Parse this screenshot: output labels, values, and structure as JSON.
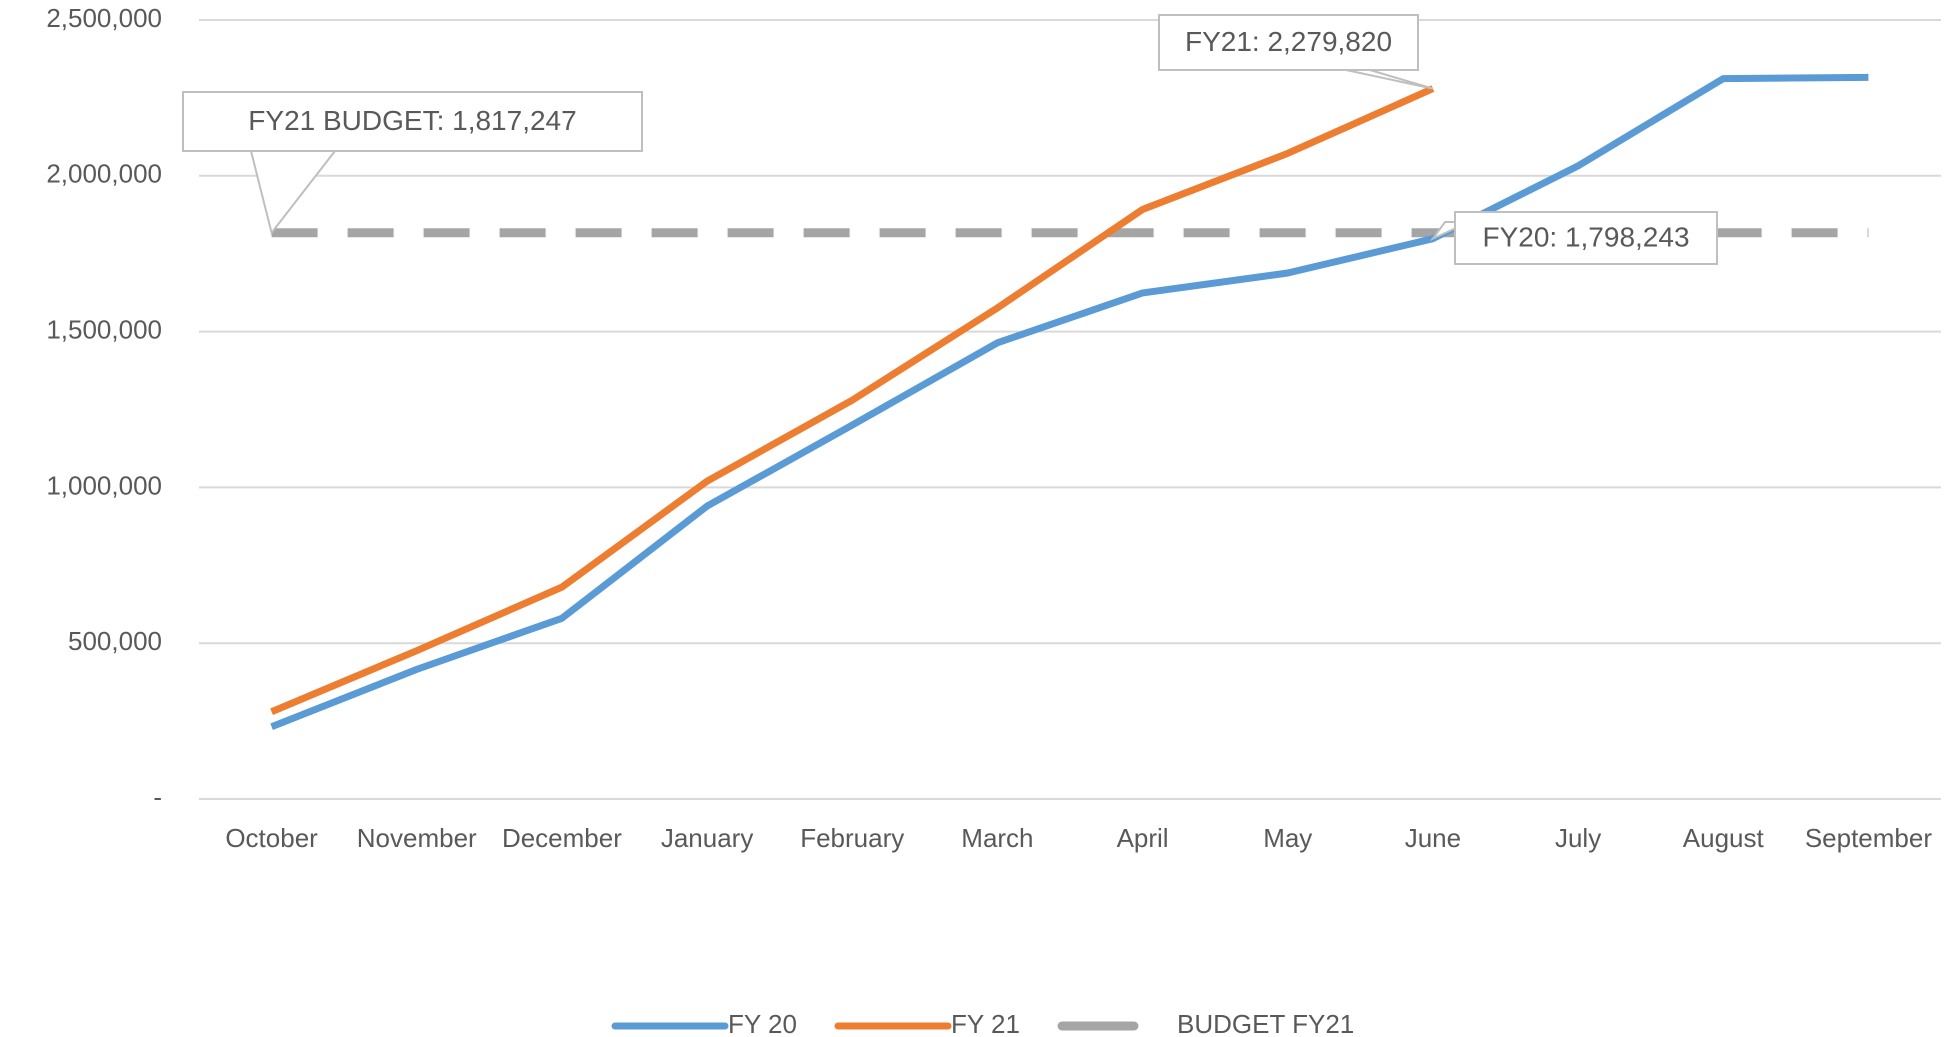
{
  "chart_data": {
    "type": "line",
    "categories": [
      "October",
      "November",
      "December",
      "January",
      "February",
      "March",
      "April",
      "May",
      "June",
      "July",
      "August",
      "September"
    ],
    "series": [
      {
        "name": "FY 20",
        "color": "#5b9bd5",
        "values": [
          232000,
          416000,
          580000,
          940000,
          1200000,
          1464000,
          1624000,
          1688000,
          1798243,
          2032000,
          2312000,
          2316000
        ],
        "value_labels": [
          null,
          null,
          null,
          null,
          null,
          null,
          null,
          null,
          "FY20:  1,798,243",
          null,
          null,
          null
        ]
      },
      {
        "name": "FY 21",
        "color": "#ed7d31",
        "values": [
          280000,
          476000,
          680000,
          1020000,
          1280000,
          1576000,
          1892000,
          2072000,
          2279820,
          null,
          null,
          null
        ],
        "value_labels": [
          null,
          null,
          null,
          null,
          null,
          null,
          null,
          null,
          "FY21:  2,279,820",
          null,
          null,
          null
        ]
      },
      {
        "name": "BUDGET FY21",
        "color": "#a5a5a5",
        "dashed": true,
        "values": [
          1817247,
          1817247,
          1817247,
          1817247,
          1817247,
          1817247,
          1817247,
          1817247,
          1817247,
          1817247,
          1817247,
          1817247
        ],
        "value_labels": [
          "FY21 BUDGET: 1,817,247",
          null,
          null,
          null,
          null,
          null,
          null,
          null,
          null,
          null,
          null,
          null
        ]
      }
    ],
    "ylim": [
      0,
      2500000
    ],
    "yticks": [
      {
        "value": 0,
        "label": "-"
      },
      {
        "value": 500000,
        "label": "500,000"
      },
      {
        "value": 1000000,
        "label": "1,000,000"
      },
      {
        "value": 1500000,
        "label": "1,500,000"
      },
      {
        "value": 2000000,
        "label": "2,000,000"
      },
      {
        "value": 2500000,
        "label": "2,500,000"
      }
    ],
    "grid": true,
    "legend": "bottom"
  }
}
